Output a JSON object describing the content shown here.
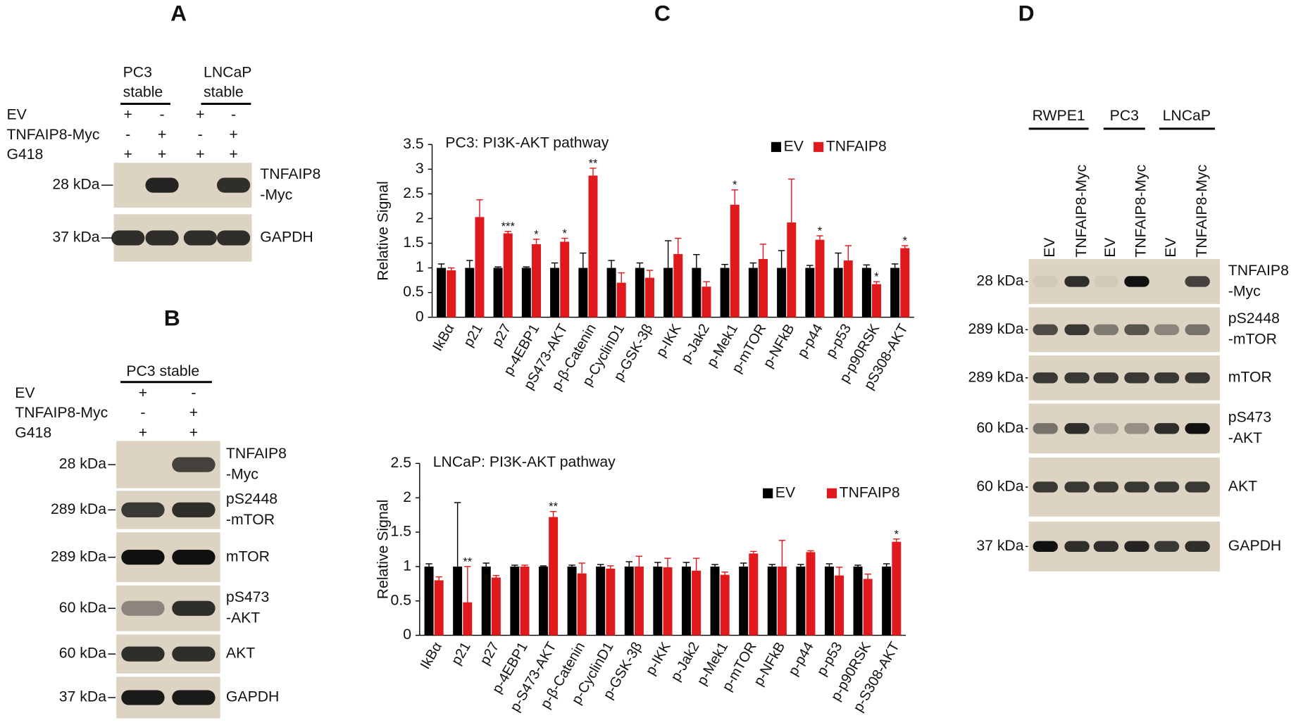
{
  "panel_a": {
    "label": "A",
    "groups": [
      [
        "PC3",
        "stable"
      ],
      [
        "LNCaP",
        "stable"
      ]
    ],
    "conditions": [
      {
        "name": "EV",
        "signs": [
          "+",
          "-",
          "+",
          "-"
        ]
      },
      {
        "name": "TNFAIP8-Myc",
        "signs": [
          "-",
          "+",
          "-",
          "+"
        ]
      },
      {
        "name": "G418",
        "signs": [
          "+",
          "+",
          "+",
          "+"
        ]
      }
    ],
    "blots": [
      {
        "marker": "28 kDa",
        "label": [
          "TNFAIP8",
          "-Myc"
        ]
      },
      {
        "marker": "37 kDa",
        "label": [
          "GAPDH"
        ]
      }
    ]
  },
  "panel_b": {
    "label": "B",
    "groups": [
      [
        "PC3 stable"
      ]
    ],
    "conditions": [
      {
        "name": "EV",
        "signs": [
          "+",
          "-"
        ]
      },
      {
        "name": "TNFAIP8-Myc",
        "signs": [
          "-",
          "+"
        ]
      },
      {
        "name": "G418",
        "signs": [
          "+",
          "+"
        ]
      }
    ],
    "blots": [
      {
        "marker": "28 kDa",
        "label": [
          "TNFAIP8",
          "-Myc"
        ]
      },
      {
        "marker": "289 kDa",
        "label": [
          "pS2448",
          "-mTOR"
        ]
      },
      {
        "marker": "289 kDa",
        "label": [
          "mTOR"
        ]
      },
      {
        "marker": "60 kDa",
        "label": [
          "pS473",
          "-AKT"
        ]
      },
      {
        "marker": "60 kDa",
        "label": [
          "AKT"
        ]
      },
      {
        "marker": "37 kDa",
        "label": [
          "GAPDH"
        ]
      }
    ]
  },
  "panel_c": {
    "label": "C"
  },
  "panel_d": {
    "label": "D",
    "groups": [
      [
        "RWPE1"
      ],
      [
        "PC3"
      ],
      [
        "LNCaP"
      ]
    ],
    "lanes": [
      "EV",
      "TNFAIP8-Myc",
      "EV",
      "TNFAIP8-Myc",
      "EV",
      "TNFAIP8-Myc"
    ],
    "blots": [
      {
        "marker": "28 kDa",
        "label": [
          "TNFAIP8",
          "-Myc"
        ]
      },
      {
        "marker": "289 kDa",
        "label": [
          "pS2448",
          "-mTOR"
        ]
      },
      {
        "marker": "289 kDa",
        "label": [
          "mTOR"
        ]
      },
      {
        "marker": "60 kDa",
        "label": [
          "pS473",
          "-AKT"
        ]
      },
      {
        "marker": "60 kDa",
        "label": [
          "AKT"
        ]
      },
      {
        "marker": "37 kDa",
        "label": [
          "GAPDH"
        ]
      }
    ]
  },
  "chart_data": [
    {
      "type": "bar",
      "title": "PC3: PI3K-AKT pathway",
      "ylabel": "Relative Signal",
      "categories": [
        "IkBα",
        "p21",
        "p27",
        "p-4EBP1",
        "pS473-AKT",
        "p-β-Catenin",
        "p-CyclinD1",
        "p-GSK-3β",
        "p-IKK",
        "p-Jak2",
        "p-Mek1",
        "p-mTOR",
        "p-NFkB",
        "p-p44",
        "p-p53",
        "p-p90RSK",
        "pS308-AKT"
      ],
      "series": [
        {
          "name": "EV",
          "color": "#000000",
          "values": [
            1,
            1,
            1,
            1,
            1,
            1,
            1,
            1,
            1,
            1,
            1,
            1,
            1,
            1,
            1,
            1,
            1
          ],
          "errors": [
            0.08,
            0.15,
            0.02,
            0.02,
            0.1,
            0.3,
            0.15,
            0.1,
            0.55,
            0.27,
            0.07,
            0.1,
            0.35,
            0.05,
            0.3,
            0.06,
            0.08
          ]
        },
        {
          "name": "TNFAIP8",
          "color": "#e0191c",
          "values": [
            0.95,
            2.03,
            1.7,
            1.48,
            1.53,
            2.87,
            0.7,
            0.8,
            1.28,
            0.62,
            2.28,
            1.18,
            1.92,
            1.57,
            1.15,
            0.67,
            1.4
          ],
          "errors": [
            0.05,
            0.35,
            0.04,
            0.1,
            0.07,
            0.15,
            0.2,
            0.15,
            0.32,
            0.1,
            0.3,
            0.3,
            0.88,
            0.08,
            0.3,
            0.05,
            0.05
          ],
          "significance": [
            null,
            null,
            "***",
            "*",
            "*",
            "**",
            null,
            null,
            null,
            null,
            "*",
            null,
            null,
            "*",
            null,
            "*",
            "*"
          ]
        }
      ],
      "ylim": [
        0,
        3.5
      ],
      "yticks": [
        0,
        0.5,
        1,
        1.5,
        2,
        2.5,
        3,
        3.5
      ],
      "grid": false,
      "legend": "upper right"
    },
    {
      "type": "bar",
      "title": "LNCaP: PI3K-AKT pathway",
      "ylabel": "Relative Signal",
      "categories": [
        "IkBα",
        "p21",
        "p27",
        "p-4EBP1",
        "p-S473-AKT",
        "p-β-Catenin",
        "p-CyclinD1",
        "p-GSK-3β",
        "p-IKK",
        "p-Jak2",
        "p-Mek1",
        "p-mTOR",
        "p-NFkB",
        "p-p44",
        "p-p53",
        "p-p90RSK",
        "p-S308-AKT"
      ],
      "series": [
        {
          "name": "EV",
          "color": "#000000",
          "values": [
            1,
            1,
            1,
            1,
            1,
            1,
            1,
            1,
            1,
            1,
            1,
            1,
            1,
            1,
            1,
            1,
            1
          ],
          "errors": [
            0.04,
            0.93,
            0.05,
            0.02,
            0.01,
            0.02,
            0.03,
            0.07,
            0.06,
            0.06,
            0.03,
            0.05,
            0.03,
            0.03,
            0.04,
            0.02,
            0.04
          ]
        },
        {
          "name": "TNFAIP8",
          "color": "#e0191c",
          "values": [
            0.8,
            0.48,
            0.84,
            1.0,
            1.72,
            0.9,
            0.97,
            1.0,
            0.99,
            0.94,
            0.88,
            1.19,
            1.0,
            1.21,
            0.87,
            0.82,
            1.36
          ],
          "errors": [
            0.05,
            0.52,
            0.03,
            0.02,
            0.08,
            0.15,
            0.04,
            0.15,
            0.13,
            0.18,
            0.04,
            0.03,
            0.38,
            0.02,
            0.12,
            0.07,
            0.04
          ],
          "significance": [
            null,
            "**",
            null,
            null,
            "**",
            null,
            null,
            null,
            null,
            null,
            null,
            null,
            null,
            null,
            null,
            null,
            "*"
          ]
        }
      ],
      "ylim": [
        0,
        2.5
      ],
      "yticks": [
        0,
        0.5,
        1,
        1.5,
        2,
        2.5
      ],
      "grid": false,
      "legend": "upper right"
    }
  ]
}
